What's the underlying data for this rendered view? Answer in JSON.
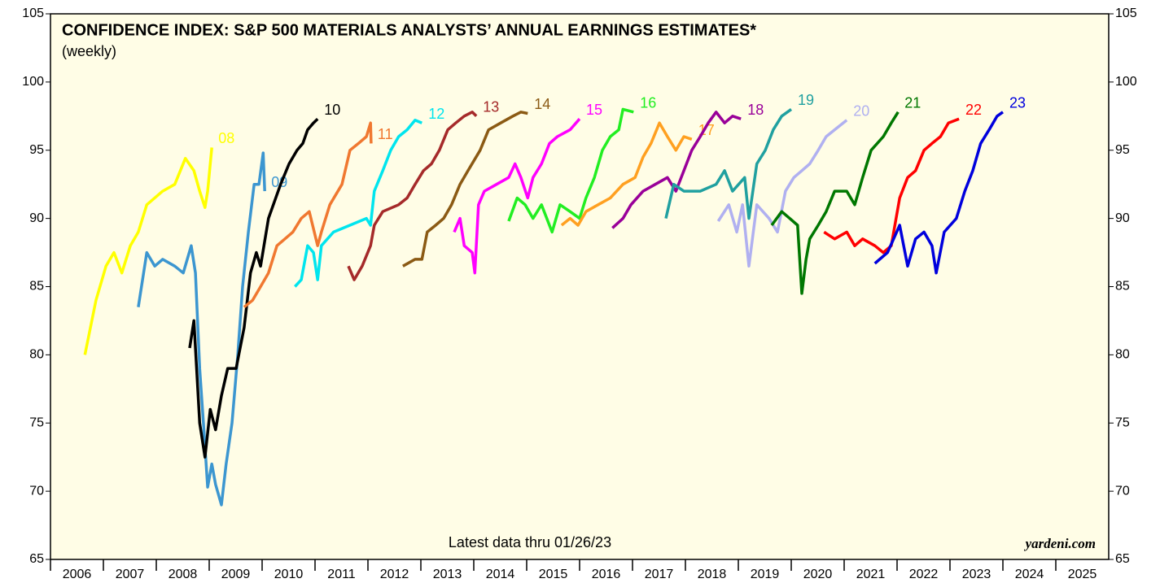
{
  "chart_data": {
    "type": "line",
    "title": "CONFIDENCE INDEX: S&P 500 MATERIALS ANALYSTS’ ANNUAL EARNINGS ESTIMATES*",
    "subtitle": "(weekly)",
    "annotation": "Latest data thru 01/26/23",
    "source": "yardeni.com",
    "xlim": [
      2006,
      2026
    ],
    "xticks": [
      2006,
      2007,
      2008,
      2009,
      2010,
      2011,
      2012,
      2013,
      2014,
      2015,
      2016,
      2017,
      2018,
      2019,
      2020,
      2021,
      2022,
      2023,
      2024,
      2025
    ],
    "ylim": [
      65,
      105
    ],
    "yticks": [
      65,
      70,
      75,
      80,
      85,
      90,
      95,
      100,
      105
    ],
    "series": [
      {
        "name": "08",
        "color": "#ffff00",
        "x": [
          2006.65,
          2006.86,
          2007.05,
          2007.2,
          2007.35,
          2007.51,
          2007.66,
          2007.82,
          2008.12,
          2008.35,
          2008.55,
          2008.71,
          2008.82,
          2008.92,
          2008.97,
          2009.05
        ],
        "values": [
          80,
          84,
          86.5,
          87.5,
          86,
          88,
          89,
          91,
          92,
          92.5,
          94.4,
          93.5,
          92,
          90.8,
          92,
          95.2
        ]
      },
      {
        "name": "09",
        "color": "#3c96d0",
        "x": [
          2007.66,
          2007.82,
          2007.97,
          2008.12,
          2008.35,
          2008.51,
          2008.66,
          2008.74,
          2008.82,
          2008.89,
          2008.97,
          2009.05,
          2009.12,
          2009.23,
          2009.32,
          2009.43,
          2009.54,
          2009.63,
          2009.74,
          2009.85,
          2009.94,
          2010.02,
          2010.05
        ],
        "values": [
          83.5,
          87.5,
          86.5,
          87,
          86.5,
          86,
          88,
          86,
          79,
          75,
          70.3,
          72,
          70.5,
          69,
          72,
          75,
          80,
          85,
          89,
          92.5,
          92.5,
          94.8,
          92
        ]
      },
      {
        "name": "10",
        "color": "#000000",
        "x": [
          2008.63,
          2008.71,
          2008.82,
          2008.92,
          2009.02,
          2009.12,
          2009.23,
          2009.35,
          2009.51,
          2009.66,
          2009.78,
          2009.89,
          2009.97,
          2010.12,
          2010.35,
          2010.51,
          2010.66,
          2010.77,
          2010.86,
          2010.97,
          2011.05
        ],
        "values": [
          80.5,
          82.5,
          75,
          72.5,
          76,
          74.5,
          77,
          79,
          79,
          82,
          86,
          87.5,
          86.5,
          90,
          92.5,
          94,
          95,
          95.5,
          96.5,
          97,
          97.3
        ]
      },
      {
        "name": "11",
        "color": "#f07830",
        "x": [
          2009.66,
          2009.82,
          2009.97,
          2010.12,
          2010.28,
          2010.43,
          2010.58,
          2010.74,
          2010.89,
          2011.05,
          2011.12,
          2011.28,
          2011.51,
          2011.66,
          2011.82,
          2011.97,
          2012.05,
          2012.06
        ],
        "values": [
          83.5,
          84,
          85,
          86,
          88,
          88.5,
          89,
          90,
          90.5,
          88,
          89,
          91,
          92.5,
          95,
          95.5,
          96,
          97,
          95.5
        ]
      },
      {
        "name": "12",
        "color": "#00e5ee",
        "x": [
          2010.62,
          2010.74,
          2010.86,
          2010.97,
          2011.05,
          2011.12,
          2011.35,
          2011.66,
          2011.97,
          2012.05,
          2012.12,
          2012.28,
          2012.43,
          2012.58,
          2012.74,
          2012.89,
          2013.02
        ],
        "values": [
          85,
          85.5,
          88,
          87.5,
          85.5,
          88,
          89,
          89.5,
          90,
          89.5,
          92,
          93.5,
          95,
          96,
          96.5,
          97.2,
          97
        ]
      },
      {
        "name": "13",
        "color": "#a52a2a",
        "x": [
          2011.63,
          2011.74,
          2011.89,
          2012.05,
          2012.12,
          2012.28,
          2012.58,
          2012.74,
          2012.89,
          2013.05,
          2013.2,
          2013.35,
          2013.51,
          2013.66,
          2013.82,
          2013.97,
          2014.05
        ],
        "values": [
          86.5,
          85.5,
          86.5,
          88,
          89.5,
          90.5,
          91,
          91.5,
          92.5,
          93.5,
          94,
          95,
          96.5,
          97,
          97.5,
          97.8,
          97.5
        ]
      },
      {
        "name": "14",
        "color": "#8b5a14",
        "x": [
          2012.66,
          2012.89,
          2013.02,
          2013.12,
          2013.28,
          2013.43,
          2013.58,
          2013.74,
          2013.89,
          2014.12,
          2014.28,
          2014.51,
          2014.74,
          2014.89,
          2015.02
        ],
        "values": [
          86.5,
          87,
          87,
          89,
          89.5,
          90,
          91,
          92.5,
          93.5,
          95,
          96.5,
          97,
          97.5,
          97.8,
          97.7
        ]
      },
      {
        "name": "15",
        "color": "#ff00ff",
        "x": [
          2013.63,
          2013.74,
          2013.82,
          2013.97,
          2014.02,
          2014.09,
          2014.2,
          2014.43,
          2014.66,
          2014.78,
          2014.89,
          2015.02,
          2015.12,
          2015.28,
          2015.43,
          2015.58,
          2015.82,
          2016
        ],
        "values": [
          89,
          90,
          88,
          87.5,
          86,
          91,
          92,
          92.5,
          93,
          94,
          93,
          91.5,
          93,
          94,
          95.5,
          96,
          96.5,
          97.3
        ]
      },
      {
        "name": "16",
        "color": "#22ee22",
        "x": [
          2014.66,
          2014.82,
          2014.97,
          2015.12,
          2015.28,
          2015.48,
          2015.63,
          2015.82,
          2016,
          2016.12,
          2016.28,
          2016.43,
          2016.58,
          2016.74,
          2016.82,
          2017.02
        ],
        "values": [
          89.8,
          91.5,
          91,
          90,
          91,
          89,
          91,
          90.5,
          90,
          91.5,
          93,
          95,
          96,
          96.5,
          98,
          97.8
        ]
      },
      {
        "name": "17",
        "color": "#ffa020",
        "x": [
          2015.66,
          2015.82,
          2015.97,
          2016.12,
          2016.35,
          2016.58,
          2016.82,
          2017.05,
          2017.2,
          2017.35,
          2017.51,
          2017.66,
          2017.82,
          2017.97,
          2018.12
        ],
        "values": [
          89.5,
          90,
          89.5,
          90.5,
          91,
          91.5,
          92.5,
          93,
          94.5,
          95.5,
          97,
          96,
          95,
          96,
          95.8
        ]
      },
      {
        "name": "18",
        "color": "#990099",
        "x": [
          2016.62,
          2016.82,
          2016.97,
          2017.2,
          2017.43,
          2017.66,
          2017.82,
          2017.97,
          2018.12,
          2018.28,
          2018.43,
          2018.58,
          2018.74,
          2018.89,
          2019.05
        ],
        "values": [
          89.3,
          90,
          91,
          92,
          92.5,
          93,
          92,
          93.5,
          95,
          96,
          97,
          97.8,
          97,
          97.5,
          97.3
        ]
      },
      {
        "name": "19",
        "color": "#20a0a0",
        "x": [
          2017.63,
          2017.78,
          2017.97,
          2018.28,
          2018.58,
          2018.74,
          2018.89,
          2019.12,
          2019.2,
          2019.35,
          2019.51,
          2019.66,
          2019.82,
          2020
        ],
        "values": [
          90,
          92.5,
          92,
          92,
          92.5,
          93.5,
          92,
          93,
          90,
          94,
          95,
          96.5,
          97.5,
          98
        ]
      },
      {
        "name": "20",
        "color": "#b0b0f0",
        "x": [
          2018.62,
          2018.82,
          2018.97,
          2019.08,
          2019.2,
          2019.35,
          2019.58,
          2019.74,
          2019.89,
          2020.05,
          2020.2,
          2020.35,
          2020.51,
          2020.66,
          2020.82,
          2021.05
        ],
        "values": [
          89.8,
          91,
          89,
          91,
          86.5,
          91,
          90,
          89,
          92,
          93,
          93.5,
          94,
          95,
          96,
          96.5,
          97.2
        ]
      },
      {
        "name": "21",
        "color": "#007700",
        "x": [
          2019.63,
          2019.82,
          2019.97,
          2020.12,
          2020.2,
          2020.28,
          2020.35,
          2020.51,
          2020.66,
          2020.82,
          2021.05,
          2021.2,
          2021.35,
          2021.51,
          2021.74,
          2021.89,
          2022.02
        ],
        "values": [
          89.5,
          90.5,
          90,
          89.5,
          84.5,
          87,
          88.5,
          89.5,
          90.5,
          92,
          92,
          91,
          93,
          95,
          96,
          97,
          97.8
        ]
      },
      {
        "name": "22",
        "color": "#ff0000",
        "x": [
          2020.62,
          2020.82,
          2021.05,
          2021.2,
          2021.35,
          2021.58,
          2021.74,
          2021.89,
          2022.05,
          2022.2,
          2022.35,
          2022.51,
          2022.66,
          2022.82,
          2022.97,
          2023.17
        ],
        "values": [
          89,
          88.5,
          89,
          88,
          88.5,
          88,
          87.5,
          88,
          91.5,
          93,
          93.5,
          95,
          95.5,
          96,
          97,
          97.3
        ]
      },
      {
        "name": "23",
        "color": "#0000dd",
        "x": [
          2021.58,
          2021.82,
          2022.05,
          2022.2,
          2022.35,
          2022.51,
          2022.66,
          2022.74,
          2022.89,
          2023.12,
          2023.28,
          2023.43,
          2023.58,
          2023.74,
          2023.89,
          2024
        ],
        "values": [
          86.7,
          87.5,
          89.5,
          86.5,
          88.5,
          89,
          88,
          86,
          89,
          90,
          92,
          93.5,
          95.5,
          96.5,
          97.5,
          97.8
        ]
      }
    ]
  }
}
